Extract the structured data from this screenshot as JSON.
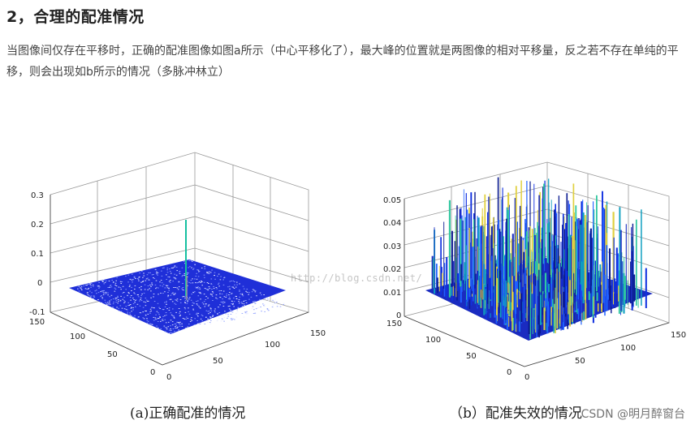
{
  "section": {
    "heading": "2，合理的配准情况",
    "paragraph": "当图像间仅存在平移时，正确的配准图像如图a所示（中心平移化了），最大峰的位置就是两图像的相对平移量，反之若不存在单纯的平移，则会出现如b所示的情况（多脉冲林立）"
  },
  "figure": {
    "caption_a": "(a)正确配准的情况",
    "caption_b": "（b）配准失效的情况",
    "watermark_mid": "http://blog.csdn.net/",
    "watermark_corner": "CSDN @明月醉窗台",
    "plot_a": {
      "z_ticks": [
        "0.3",
        "0.2",
        "0.1",
        "0",
        "-0.1"
      ],
      "y_ticks": [
        "150",
        "100",
        "50",
        "0"
      ],
      "x_ticks": [
        "0",
        "50",
        "100",
        "150"
      ]
    },
    "plot_b": {
      "z_ticks": [
        "0.05",
        "0.04",
        "0.03",
        "0.02",
        "0.01",
        "0"
      ],
      "y_ticks": [
        "150",
        "100",
        "50",
        "0"
      ],
      "x_ticks": [
        "0",
        "50",
        "100",
        "150"
      ]
    },
    "colors": {
      "surface_a": "#1f2fd8",
      "surface_b": "#1a2bc0",
      "grid": "#9a9a9a"
    }
  }
}
